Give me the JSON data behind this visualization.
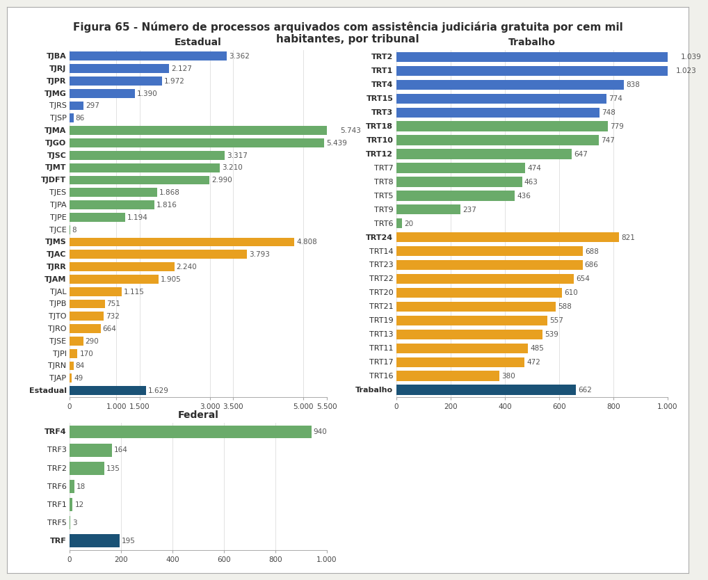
{
  "title": "Figura 65 - Número de processos arquivados com assistência judiciária gratuita por cem mil\nhabitantes, por tribunal",
  "estadual": {
    "title": "Estadual",
    "labels": [
      "TJBA",
      "TJRJ",
      "TJPR",
      "TJMG",
      "TJRS",
      "TJSP",
      "TJMA",
      "TJGO",
      "TJSC",
      "TJMT",
      "TJDFT",
      "TJES",
      "TJPA",
      "TJPE",
      "TJCE",
      "TJMS",
      "TJAC",
      "TJRR",
      "TJAM",
      "TJAL",
      "TJPB",
      "TJTO",
      "TJRO",
      "TJSE",
      "TJPI",
      "TJRN",
      "TJAP",
      "Estadual"
    ],
    "values": [
      3362,
      2127,
      1972,
      1390,
      297,
      86,
      5743,
      5439,
      3317,
      3210,
      2990,
      1868,
      1816,
      1194,
      8,
      4808,
      3793,
      2240,
      1905,
      1115,
      751,
      732,
      664,
      290,
      170,
      84,
      49,
      1629
    ],
    "value_labels": [
      "3.362",
      "2.127",
      "1.972",
      "1.390",
      "297",
      "86",
      "5.743",
      "5.439",
      "3.317",
      "3.210",
      "2.990",
      "1.868",
      "1.816",
      "1.194",
      "8",
      "4.808",
      "3.793",
      "2.240",
      "1.905",
      "1.115",
      "751",
      "732",
      "664",
      "290",
      "170",
      "84",
      "49",
      "1.629"
    ],
    "colors": [
      "#4472c4",
      "#4472c4",
      "#4472c4",
      "#4472c4",
      "#4472c4",
      "#4472c4",
      "#6aab6a",
      "#6aab6a",
      "#6aab6a",
      "#6aab6a",
      "#6aab6a",
      "#6aab6a",
      "#6aab6a",
      "#6aab6a",
      "#6aab6a",
      "#e8a020",
      "#e8a020",
      "#e8a020",
      "#e8a020",
      "#e8a020",
      "#e8a020",
      "#e8a020",
      "#e8a020",
      "#e8a020",
      "#e8a020",
      "#e8a020",
      "#e8a020",
      "#1a5276"
    ],
    "xlim": [
      0,
      5500
    ],
    "xticks": [
      0,
      1000,
      1500,
      3000,
      3500,
      5000,
      5500
    ],
    "xtick_labels": [
      "0",
      "1.000",
      "1.500",
      "3.000",
      "3.500",
      "5.000",
      "5.500"
    ],
    "bold_labels": [
      "TJBA",
      "TJRJ",
      "TJPR",
      "TJMG",
      "TJMA",
      "TJGO",
      "TJSC",
      "TJMT",
      "TJDFT",
      "TJMS",
      "TJAC",
      "TJRR",
      "TJAM",
      "Estadual"
    ]
  },
  "trabalho": {
    "title": "Trabalho",
    "labels": [
      "TRT2",
      "TRT1",
      "TRT4",
      "TRT15",
      "TRT3",
      "TRT18",
      "TRT10",
      "TRT12",
      "TRT7",
      "TRT8",
      "TRT5",
      "TRT9",
      "TRT6",
      "TRT24",
      "TRT14",
      "TRT23",
      "TRT22",
      "TRT20",
      "TRT21",
      "TRT19",
      "TRT13",
      "TRT11",
      "TRT17",
      "TRT16",
      "Trabalho"
    ],
    "values": [
      1039,
      1023,
      838,
      774,
      748,
      779,
      747,
      647,
      474,
      463,
      436,
      237,
      20,
      821,
      688,
      686,
      654,
      610,
      588,
      557,
      539,
      485,
      472,
      380,
      662
    ],
    "value_labels": [
      "1.039",
      "1.023",
      "838",
      "774",
      "748",
      "779",
      "747",
      "647",
      "474",
      "463",
      "436",
      "237",
      "20",
      "821",
      "688",
      "686",
      "654",
      "610",
      "588",
      "557",
      "539",
      "485",
      "472",
      "380",
      "662"
    ],
    "colors": [
      "#4472c4",
      "#4472c4",
      "#4472c4",
      "#4472c4",
      "#4472c4",
      "#6aab6a",
      "#6aab6a",
      "#6aab6a",
      "#6aab6a",
      "#6aab6a",
      "#6aab6a",
      "#6aab6a",
      "#6aab6a",
      "#e8a020",
      "#e8a020",
      "#e8a020",
      "#e8a020",
      "#e8a020",
      "#e8a020",
      "#e8a020",
      "#e8a020",
      "#e8a020",
      "#e8a020",
      "#e8a020",
      "#1a5276"
    ],
    "xlim": [
      0,
      1000
    ],
    "xticks": [
      0,
      200,
      400,
      600,
      800,
      1000
    ],
    "xtick_labels": [
      "0",
      "200",
      "400",
      "600",
      "800",
      "1.000"
    ],
    "bold_labels": [
      "TRT2",
      "TRT1",
      "TRT4",
      "TRT15",
      "TRT3",
      "TRT18",
      "TRT10",
      "TRT12",
      "TRT24",
      "Trabalho"
    ]
  },
  "federal": {
    "title": "Federal",
    "labels": [
      "TRF4",
      "TRF3",
      "TRF2",
      "TRF6",
      "TRF1",
      "TRF5",
      "TRF"
    ],
    "values": [
      940,
      164,
      135,
      18,
      12,
      3,
      195
    ],
    "value_labels": [
      "940",
      "164",
      "135",
      "18",
      "12",
      "3",
      "195"
    ],
    "colors": [
      "#6aab6a",
      "#6aab6a",
      "#6aab6a",
      "#6aab6a",
      "#6aab6a",
      "#6aab6a",
      "#1a5276"
    ],
    "xlim": [
      0,
      1000
    ],
    "xticks": [
      0,
      200,
      400,
      600,
      800,
      1000
    ],
    "xtick_labels": [
      "0",
      "200",
      "400",
      "600",
      "800",
      "1.000"
    ],
    "bold_labels": [
      "TRF4",
      "TRF"
    ]
  },
  "bg_color": "#ffffff",
  "outer_bg": "#f0f0eb",
  "label_fontsize": 8,
  "value_fontsize": 7.5,
  "title_fontsize": 11,
  "subtitle_fontsize": 10
}
